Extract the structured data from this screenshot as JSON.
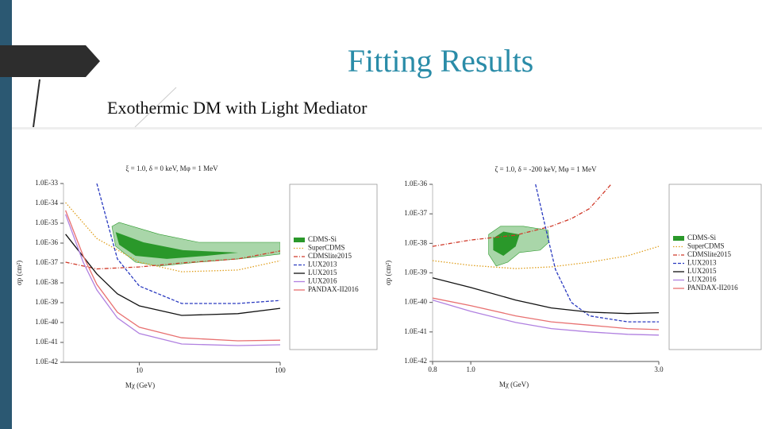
{
  "slide": {
    "title": "Fitting Results",
    "subtitle": "Exothermic DM with Light Mediator"
  },
  "chart_data": [
    {
      "type": "line",
      "title": "ξ = 1.0, δ = 0 keV, Mφ = 1 MeV",
      "x_label": "Mχ (GeV)",
      "y_label": "σp (cm²)",
      "xscale": "log",
      "yscale": "log",
      "xlim": [
        2.9,
        100
      ],
      "ylim": [
        1e-42,
        1e-33
      ],
      "xticks": [
        10,
        100
      ],
      "yticks": [
        {
          "value": 1e-33,
          "label": "1.0E-33"
        },
        {
          "value": 1e-34,
          "label": "1.0E-34"
        },
        {
          "value": 1e-35,
          "label": "1.0E-35"
        },
        {
          "value": 1e-36,
          "label": "1.0E-36"
        },
        {
          "value": 1e-37,
          "label": "1.0E-37"
        },
        {
          "value": 1e-38,
          "label": "1.0E-38"
        },
        {
          "value": 1e-39,
          "label": "1.0E-39"
        },
        {
          "value": 1e-40,
          "label": "1.0E-40"
        },
        {
          "value": 1e-41,
          "label": "1.0E-41"
        },
        {
          "value": 1e-42,
          "label": "1.0E-42"
        }
      ],
      "grid": false,
      "legend": "outside right",
      "series": [
        {
          "name": "CDMS-Si",
          "style": "contour",
          "color": "#2a982a",
          "fill_color": "#a9d6a9",
          "x": [
            6.4,
            7.2,
            13.8,
            26.4,
            50.4,
            100,
            100,
            50.4,
            26.4,
            13.8,
            9.4,
            6.8
          ],
          "values": [
            6.9e-36,
            1.1e-35,
            2.8e-36,
            1.1e-36,
            1.1e-36,
            1.1e-36,
            2.8e-37,
            1.6e-37,
            1.1e-37,
            6.9e-38,
            1.1e-37,
            6.9e-37
          ],
          "inner_x": [
            6.8,
            10.7,
            20.4,
            50.4,
            30,
            15.7,
            9.4,
            7.2
          ],
          "inner_values": [
            3.6e-36,
            1.1e-36,
            4.4e-37,
            3.3e-37,
            2.3e-37,
            1.6e-37,
            2.3e-37,
            8.3e-37
          ]
        },
        {
          "name": "SuperCDMS",
          "style": "dotted",
          "color": "#e0a020",
          "x": [
            3,
            5,
            10,
            20,
            50,
            100
          ],
          "values": [
            1.1e-34,
            1.7e-36,
            1.1e-37,
            3.6e-38,
            4.4e-38,
            1.3e-37
          ]
        },
        {
          "name": "CDMSlite2015",
          "style": "dashdot",
          "color": "#d03a2a",
          "x": [
            3,
            5,
            10,
            20,
            50,
            100
          ],
          "values": [
            1.1e-37,
            5e-38,
            6.3e-38,
            1e-37,
            1.6e-37,
            4e-37
          ]
        },
        {
          "name": "LUX2013",
          "style": "dashed",
          "color": "#2a3ac0",
          "x": [
            5,
            7,
            10,
            20,
            50,
            100
          ],
          "values": [
            1e-33,
            1.6e-37,
            6.9e-39,
            9.1e-40,
            9.1e-40,
            1.3e-39
          ]
        },
        {
          "name": "LUX2015",
          "style": "solid",
          "color": "#111111",
          "x": [
            3,
            5,
            7,
            10,
            20,
            50,
            100
          ],
          "values": [
            2.8e-36,
            2.8e-38,
            2.8e-39,
            6.9e-40,
            2.3e-40,
            2.8e-40,
            5.2e-40
          ]
        },
        {
          "name": "LUX2016",
          "style": "solid",
          "color": "#b080e0",
          "x": [
            3,
            4,
            5,
            7,
            10,
            20,
            50,
            100
          ],
          "values": [
            2.8e-35,
            1.1e-37,
            4.4e-39,
            1.7e-40,
            2.8e-41,
            8.3e-42,
            6.9e-42,
            7.6e-42
          ]
        },
        {
          "name": "PANDAX-II2016",
          "style": "solid",
          "color": "#e87070",
          "x": [
            3,
            4,
            5,
            7,
            10,
            20,
            50,
            100
          ],
          "values": [
            4.4e-35,
            2.3e-37,
            8.3e-39,
            3.3e-40,
            5.8e-41,
            1.7e-41,
            1.2e-41,
            1.3e-41
          ]
        }
      ]
    },
    {
      "type": "line",
      "title": "ζ = 1.0, δ = -200 keV, Mφ = 1 MeV",
      "x_label": "Mχ (GeV)",
      "y_label": "σp (cm²)",
      "xscale": "log",
      "yscale": "log",
      "xlim": [
        0.8,
        3.0
      ],
      "ylim": [
        1e-42,
        1e-36
      ],
      "xticks": [
        0.8,
        {
          "value": 1,
          "label": "1.0"
        },
        {
          "value": 3,
          "label": "3.0"
        }
      ],
      "yticks": [
        {
          "value": 1e-36,
          "label": "1.0E-36"
        },
        {
          "value": 1e-37,
          "label": "1.0E-37"
        },
        {
          "value": 1e-38,
          "label": "1.0E-38"
        },
        {
          "value": 1e-39,
          "label": "1.0E-39"
        },
        {
          "value": 1e-40,
          "label": "1.0E-40"
        },
        {
          "value": 1e-41,
          "label": "1.0E-41"
        },
        {
          "value": 1e-42,
          "label": "1.0E-42"
        }
      ],
      "grid": false,
      "legend": "outside right",
      "series": [
        {
          "name": "CDMS-Si",
          "style": "contour",
          "color": "#2a982a",
          "fill_color": "#a9d6a9",
          "x": [
            1.11,
            1.19,
            1.36,
            1.57,
            1.58,
            1.5,
            1.33,
            1.24,
            1.16,
            1.11
          ],
          "values": [
            2e-38,
            3.8e-38,
            3.8e-38,
            2.8e-38,
            1.1e-38,
            5.9e-39,
            4.9e-39,
            2.3e-39,
            1.7e-39,
            4.3e-39
          ],
          "inner_x": [
            1.14,
            1.21,
            1.33,
            1.3,
            1.21,
            1.14
          ],
          "inner_values": [
            1.5e-38,
            2.5e-38,
            2e-38,
            7.9e-39,
            3.8e-39,
            5.9e-39
          ]
        },
        {
          "name": "SuperCDMS",
          "style": "dotted",
          "color": "#e0a020",
          "x": [
            0.8,
            1.0,
            1.3,
            1.6,
            2.0,
            2.5,
            3.0
          ],
          "values": [
            2.6e-39,
            1.8e-39,
            1.4e-39,
            1.6e-39,
            2.3e-39,
            3.8e-39,
            7.9e-39
          ]
        },
        {
          "name": "CDMSlite2015",
          "style": "dashdot",
          "color": "#d03a2a",
          "x": [
            0.8,
            1.0,
            1.3,
            1.6,
            1.8,
            2.0,
            2.27
          ],
          "values": [
            7.9e-39,
            1.3e-38,
            1.9e-38,
            3.8e-38,
            6.9e-38,
            1.5e-37,
            1e-36
          ]
        },
        {
          "name": "LUX2013",
          "style": "dashed",
          "color": "#2a3ac0",
          "x": [
            1.46,
            1.57,
            1.64,
            1.8,
            2.0,
            2.5,
            3.0
          ],
          "values": [
            1e-36,
            1.5e-38,
            1.3e-39,
            1e-40,
            3.5e-41,
            2.2e-41,
            2.2e-41
          ]
        },
        {
          "name": "LUX2015",
          "style": "solid",
          "color": "#111111",
          "x": [
            0.8,
            1.0,
            1.3,
            1.6,
            2.0,
            2.5,
            3.0
          ],
          "values": [
            6.8e-40,
            3.2e-40,
            1.2e-40,
            6.5e-41,
            4.7e-41,
            4.2e-41,
            4.5e-41
          ]
        },
        {
          "name": "LUX2016",
          "style": "solid",
          "color": "#b080e0",
          "x": [
            0.8,
            1.0,
            1.3,
            1.6,
            2.0,
            2.5,
            3.0
          ],
          "values": [
            1.2e-40,
            5e-41,
            2.1e-41,
            1.3e-41,
            1e-41,
            8.3e-42,
            7.8e-42
          ]
        },
        {
          "name": "PANDAX-II2016",
          "style": "solid",
          "color": "#e87070",
          "x": [
            0.8,
            1.0,
            1.3,
            1.6,
            2.0,
            2.5,
            3.0
          ],
          "values": [
            1.4e-40,
            7.8e-41,
            3.5e-41,
            2.2e-41,
            1.7e-41,
            1.3e-41,
            1.2e-41
          ]
        }
      ]
    }
  ]
}
